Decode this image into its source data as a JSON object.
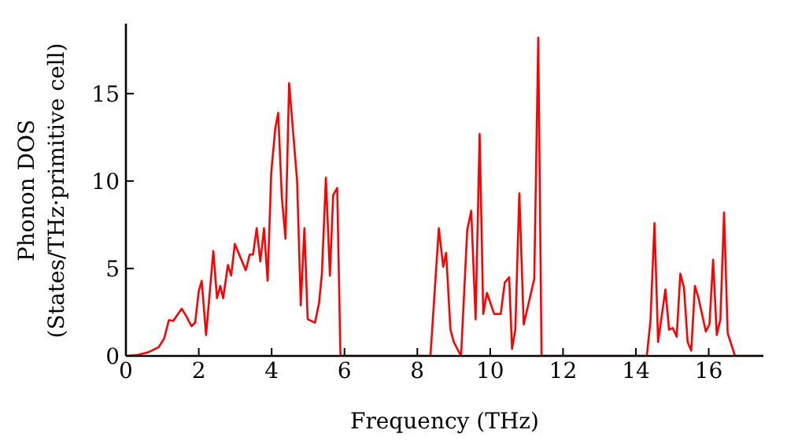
{
  "chart_data": {
    "type": "line",
    "xlabel": "Frequency (THz)",
    "ylabel": "Phonon DOS\n(States/THz·primitive cell)",
    "x": [
      0,
      0.3,
      0.6,
      0.9,
      1.05,
      1.18,
      1.3,
      1.53,
      1.65,
      1.8,
      1.9,
      2.0,
      2.08,
      2.2,
      2.4,
      2.5,
      2.59,
      2.67,
      2.8,
      2.89,
      2.99,
      3.13,
      3.29,
      3.4,
      3.49,
      3.59,
      3.69,
      3.79,
      3.89,
      3.99,
      4.1,
      4.18,
      4.28,
      4.38,
      4.48,
      4.7,
      4.8,
      4.9,
      4.99,
      5.19,
      5.3,
      5.38,
      5.49,
      5.6,
      5.69,
      5.8,
      5.89,
      8.36,
      8.59,
      8.71,
      8.79,
      8.91,
      9.0,
      9.2,
      9.37,
      9.48,
      9.6,
      9.71,
      9.81,
      9.91,
      10.11,
      10.29,
      10.4,
      10.52,
      10.6,
      10.69,
      10.8,
      10.92,
      11.21,
      11.32,
      11.41,
      14.3,
      14.4,
      14.51,
      14.61,
      14.81,
      14.91,
      15.01,
      15.12,
      15.22,
      15.32,
      15.42,
      15.52,
      15.62,
      15.72,
      15.92,
      16.02,
      16.12,
      16.22,
      16.32,
      16.42,
      16.52,
      16.72,
      17.5
    ],
    "series": [
      {
        "color": "#ff0000",
        "values": [
          0,
          0.05,
          0.2,
          0.5,
          1.0,
          2.05,
          2.0,
          2.7,
          2.3,
          1.7,
          1.9,
          3.7,
          4.3,
          1.2,
          6.0,
          3.3,
          4.0,
          3.3,
          5.2,
          4.6,
          6.4,
          5.7,
          4.9,
          5.8,
          5.8,
          7.3,
          5.4,
          7.3,
          4.3,
          10.5,
          13.0,
          13.9,
          9.1,
          6.7,
          15.6,
          10.0,
          2.9,
          7.3,
          2.1,
          1.9,
          3.0,
          4.7,
          10.2,
          4.6,
          9.2,
          9.6,
          0,
          0,
          7.3,
          5.1,
          5.9,
          1.5,
          0.8,
          0,
          7.2,
          8.3,
          2.1,
          12.7,
          2.4,
          3.6,
          2.4,
          2.4,
          4.2,
          4.5,
          0.4,
          1.5,
          9.3,
          1.8,
          4.4,
          18.2,
          0,
          0,
          2.0,
          7.6,
          0.8,
          3.8,
          1.5,
          1.6,
          1.1,
          4.7,
          3.9,
          0.8,
          0.3,
          4.0,
          3.3,
          1.4,
          1.8,
          5.5,
          1.2,
          2.1,
          8.2,
          1.3,
          0,
          0
        ]
      }
    ],
    "xlim": [
      0,
      17.5
    ],
    "xticks": [
      0,
      2,
      4,
      6,
      8,
      10,
      12,
      14,
      16
    ],
    "ylim": [
      0,
      19
    ],
    "yticks": [
      0,
      5,
      10,
      15
    ],
    "grid": false,
    "legend": false,
    "marker": "none",
    "line_style": "solid"
  }
}
